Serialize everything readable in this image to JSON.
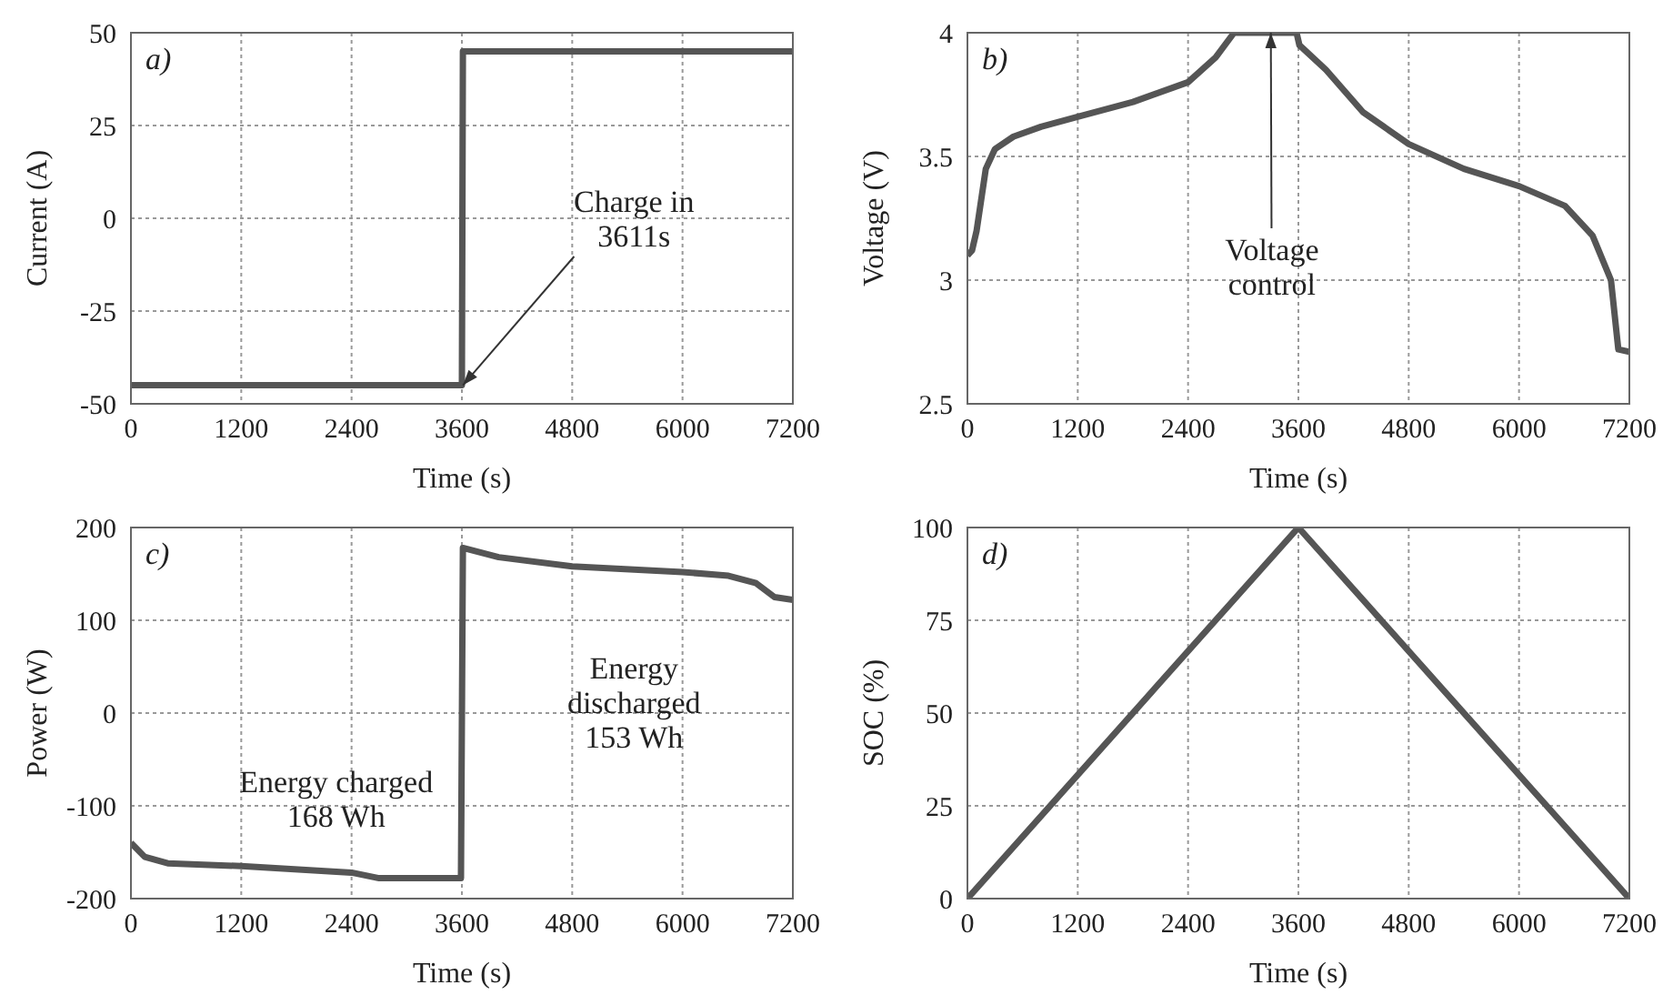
{
  "chart_data": [
    {
      "type": "line",
      "title": "a)",
      "xlabel": "Time (s)",
      "ylabel": "Current (A)",
      "x": [
        0,
        3600,
        3611,
        7200
      ],
      "series": [
        {
          "color": "#555555",
          "values": [
            -45,
            -45,
            45,
            45
          ]
        }
      ],
      "xlim": [
        0,
        7200
      ],
      "xticks": [
        0,
        1200,
        2400,
        3600,
        4800,
        6000,
        7200
      ],
      "ylim": [
        -50,
        50
      ],
      "yticks": [
        -50,
        -25,
        0,
        25,
        50
      ],
      "grid": true,
      "annotations": [
        {
          "text": "Charge in\n3611s",
          "x": 3611,
          "y": -45
        }
      ]
    },
    {
      "type": "line",
      "title": "b)",
      "xlabel": "Time (s)",
      "ylabel": "Voltage (V)",
      "x": [
        0,
        50,
        100,
        200,
        300,
        500,
        800,
        1200,
        1800,
        2400,
        2700,
        2900,
        3580,
        3611,
        3900,
        4300,
        4800,
        5400,
        6000,
        6500,
        6800,
        7000,
        7080,
        7200
      ],
      "series": [
        {
          "color": "#555555",
          "values": [
            3.1,
            3.12,
            3.2,
            3.45,
            3.53,
            3.58,
            3.62,
            3.66,
            3.72,
            3.8,
            3.9,
            4.0,
            4.0,
            3.95,
            3.85,
            3.68,
            3.55,
            3.45,
            3.38,
            3.3,
            3.18,
            3.0,
            2.72,
            2.71
          ]
        }
      ],
      "xlim": [
        0,
        7200
      ],
      "xticks": [
        0,
        1200,
        2400,
        3600,
        4800,
        6000,
        7200
      ],
      "ylim": [
        2.5,
        4
      ],
      "yticks": [
        2.5,
        3,
        3.5,
        4
      ],
      "grid": true,
      "annotations": [
        {
          "text": "Voltage\ncontrol",
          "x": 3300,
          "y": 4.0
        }
      ]
    },
    {
      "type": "line",
      "title": "c)",
      "xlabel": "Time (s)",
      "ylabel": "Power (W)",
      "x": [
        0,
        150,
        400,
        1200,
        2400,
        2700,
        3590,
        3611,
        4000,
        4800,
        6000,
        6500,
        6800,
        7000,
        7200
      ],
      "series": [
        {
          "color": "#555555",
          "values": [
            -140,
            -155,
            -162,
            -165,
            -172,
            -178,
            -178,
            178,
            168,
            158,
            152,
            148,
            140,
            125,
            122
          ]
        }
      ],
      "xlim": [
        0,
        7200
      ],
      "xticks": [
        0,
        1200,
        2400,
        3600,
        4800,
        6000,
        7200
      ],
      "ylim": [
        -200,
        200
      ],
      "yticks": [
        -200,
        -100,
        0,
        100,
        200
      ],
      "grid": true,
      "annotations": [
        "Energy charged\n168 Wh",
        "Energy\ndischarged\n153 Wh"
      ]
    },
    {
      "type": "line",
      "title": "d)",
      "xlabel": "Time (s)",
      "ylabel": "SOC (%)",
      "x": [
        0,
        3600,
        7200
      ],
      "series": [
        {
          "color": "#555555",
          "values": [
            0,
            100,
            0
          ]
        }
      ],
      "xlim": [
        0,
        7200
      ],
      "xticks": [
        0,
        1200,
        2400,
        3600,
        4800,
        6000,
        7200
      ],
      "ylim": [
        0,
        100
      ],
      "yticks": [
        0,
        25,
        50,
        75,
        100
      ],
      "grid": true
    }
  ]
}
